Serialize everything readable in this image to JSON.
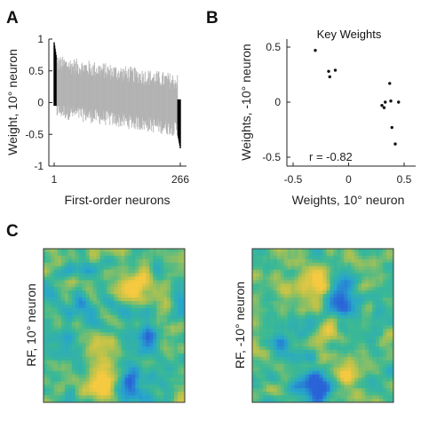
{
  "panels": {
    "a": {
      "letter": "A"
    },
    "b": {
      "letter": "B"
    },
    "c": {
      "letter": "C"
    }
  },
  "chart_data": [
    {
      "type": "bar",
      "panel": "A",
      "title": "",
      "xlabel": "First-order neurons",
      "ylabel": "Weight, 10° neuron",
      "xlim": [
        1,
        266
      ],
      "ylim": [
        -1,
        1
      ],
      "x_ticks": [
        "1",
        "266"
      ],
      "y_ticks": [
        "1",
        "0.5",
        "0",
        "-0.5",
        "-1"
      ],
      "n_neurons": 266,
      "sorted": "descending",
      "value_range": {
        "max": 0.95,
        "min": -0.72
      },
      "highlighted_colors": {
        "bulk": "#b3b3b3",
        "extremes": "#000000"
      },
      "highlighted_indices": [
        1,
        2,
        3,
        4,
        5,
        6,
        261,
        262,
        263,
        264,
        265,
        266
      ]
    },
    {
      "type": "scatter",
      "panel": "B",
      "title": "Key Weights",
      "xlabel": "Weights, 10° neuron",
      "ylabel": "Weights, -10° neuron",
      "xlim": [
        -0.5,
        0.5
      ],
      "ylim": [
        -0.6,
        0.6
      ],
      "x_ticks": [
        "-0.5",
        "0",
        "0.5"
      ],
      "y_ticks": [
        "0.5",
        "0",
        "-0.5"
      ],
      "annotation": "r = -0.82",
      "points": [
        {
          "x": -0.3,
          "y": 0.47
        },
        {
          "x": -0.18,
          "y": 0.28
        },
        {
          "x": -0.17,
          "y": 0.23
        },
        {
          "x": -0.12,
          "y": 0.29
        },
        {
          "x": 0.3,
          "y": -0.03
        },
        {
          "x": 0.32,
          "y": -0.05
        },
        {
          "x": 0.33,
          "y": 0.0
        },
        {
          "x": 0.37,
          "y": 0.17
        },
        {
          "x": 0.38,
          "y": 0.01
        },
        {
          "x": 0.39,
          "y": -0.23
        },
        {
          "x": 0.42,
          "y": -0.38
        },
        {
          "x": 0.45,
          "y": 0.0
        }
      ]
    },
    {
      "type": "heatmap",
      "panel": "C-left",
      "ylabel": "RF, 10° neuron",
      "colormap": [
        "#2a63d8",
        "#27a6cc",
        "#3bb993",
        "#b5c24c",
        "#f5c940"
      ]
    },
    {
      "type": "heatmap",
      "panel": "C-right",
      "ylabel": "RF, -10° neuron",
      "colormap": [
        "#2a63d8",
        "#27a6cc",
        "#3bb993",
        "#b5c24c",
        "#f5c940"
      ]
    }
  ]
}
